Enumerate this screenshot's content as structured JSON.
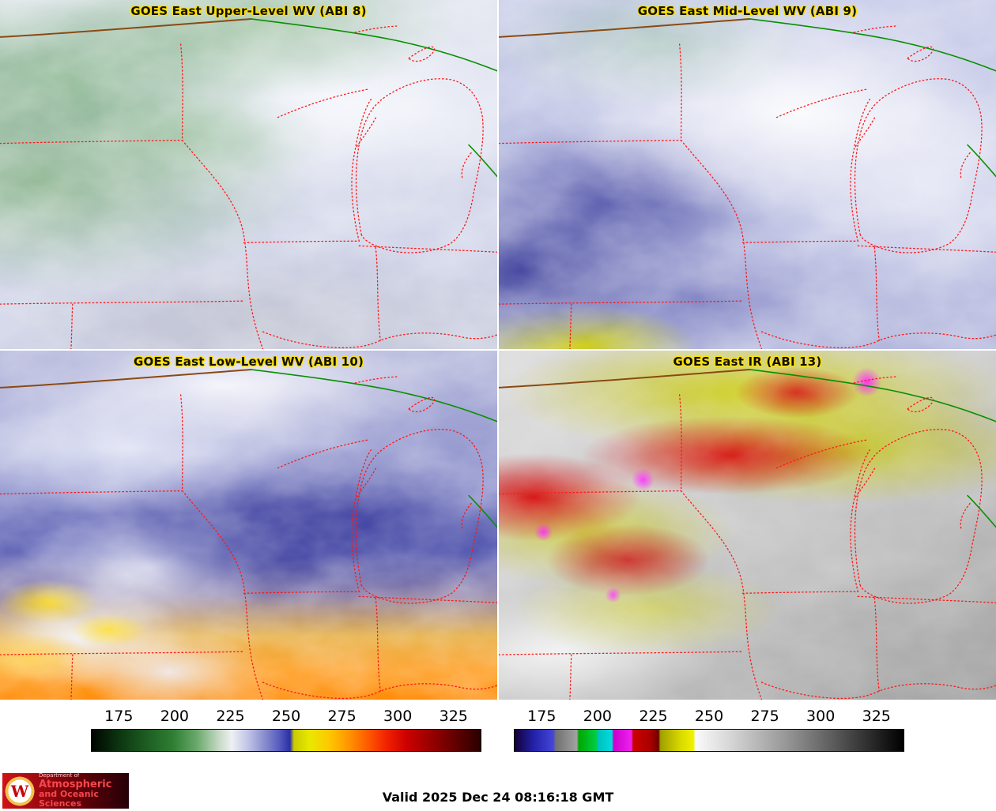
{
  "panels": [
    {
      "title": "GOES East Upper-Level WV (ABI 8)"
    },
    {
      "title": "GOES East Mid-Level WV (ABI 9)"
    },
    {
      "title": "GOES East Low-Level WV (ABI 10)"
    },
    {
      "title": "GOES East IR (ABI 13)"
    }
  ],
  "colorbars": [
    {
      "name": "water-vapor-enhancement",
      "ticks": [
        "175",
        "200",
        "225",
        "250",
        "275",
        "300",
        "325"
      ],
      "stops": [
        [
          0,
          "#000400"
        ],
        [
          7,
          "#0c3510"
        ],
        [
          14,
          "#1d5c22"
        ],
        [
          21,
          "#2f7f33"
        ],
        [
          27,
          "#6aa86c"
        ],
        [
          33,
          "#c9dcc9"
        ],
        [
          36,
          "#eef0f2"
        ],
        [
          40,
          "#c3c6e6"
        ],
        [
          44,
          "#8e93d0"
        ],
        [
          48,
          "#5a5fc0"
        ],
        [
          51,
          "#2b2fa8"
        ],
        [
          52,
          "#caca00"
        ],
        [
          56,
          "#e8e800"
        ],
        [
          61,
          "#ffc800"
        ],
        [
          66,
          "#ff9600"
        ],
        [
          71,
          "#ff5a00"
        ],
        [
          76,
          "#f02000"
        ],
        [
          81,
          "#cc0000"
        ],
        [
          87,
          "#9a0000"
        ],
        [
          94,
          "#5e0000"
        ],
        [
          100,
          "#2a0000"
        ]
      ]
    },
    {
      "name": "ir-enhancement",
      "ticks": [
        "175",
        "200",
        "225",
        "250",
        "275",
        "300",
        "325"
      ],
      "stops": [
        [
          0,
          "#140038"
        ],
        [
          5,
          "#2222aa"
        ],
        [
          10,
          "#4646d8"
        ],
        [
          10.5,
          "#707070"
        ],
        [
          16,
          "#a2a2a2"
        ],
        [
          16.5,
          "#00a800"
        ],
        [
          21,
          "#00cc44"
        ],
        [
          21.5,
          "#00c0c0"
        ],
        [
          25,
          "#00dcdc"
        ],
        [
          25.5,
          "#cc00cc"
        ],
        [
          30,
          "#ee22ee"
        ],
        [
          30.5,
          "#cc0000"
        ],
        [
          35,
          "#a80000"
        ],
        [
          37,
          "#6e0000"
        ],
        [
          37.5,
          "#a0a000"
        ],
        [
          43,
          "#dcdc00"
        ],
        [
          46,
          "#f0f000"
        ],
        [
          46.5,
          "#fafafa"
        ],
        [
          55,
          "#d8d8d8"
        ],
        [
          70,
          "#969696"
        ],
        [
          85,
          "#4c4c4c"
        ],
        [
          100,
          "#000000"
        ]
      ]
    }
  ],
  "footer": {
    "valid_time": "Valid 2025 Dec 24 08:16:18 GMT"
  },
  "logo": {
    "crest_letter": "W",
    "line1": "Department of",
    "line2": "Atmospheric",
    "line3": "and Oceanic Sciences"
  },
  "map_colors": {
    "state_boundary": "#ff1616",
    "national_boundary": "#8a4a12",
    "shoreline": "#089000",
    "title_fill": "#101010",
    "title_outline": "#ffe100"
  }
}
